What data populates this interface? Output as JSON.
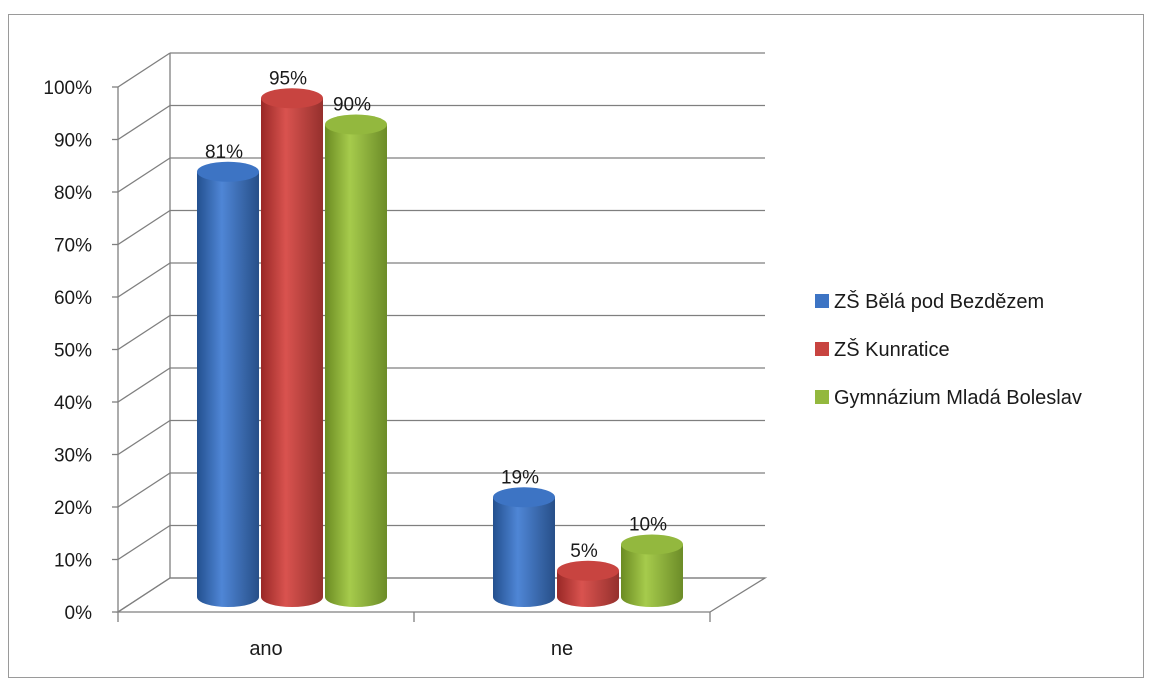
{
  "chart_data": {
    "type": "bar",
    "style": "3d-cylinder",
    "categories": [
      "ano",
      "ne"
    ],
    "series": [
      {
        "name": "ZŠ Bělá pod Bezdězem",
        "values": [
          81,
          19
        ],
        "color": "#3d74c4"
      },
      {
        "name": "ZŠ Kunratice",
        "values": [
          95,
          5
        ],
        "color": "#c84440"
      },
      {
        "name": "Gymnázium Mladá Boleslav",
        "values": [
          90,
          10
        ],
        "color": "#93b83e"
      }
    ],
    "data_labels": [
      [
        "81%",
        "19%"
      ],
      [
        "95%",
        "5%"
      ],
      [
        "90%",
        "10%"
      ]
    ],
    "y_ticks": [
      "0%",
      "10%",
      "20%",
      "30%",
      "40%",
      "50%",
      "60%",
      "70%",
      "80%",
      "90%",
      "100%"
    ],
    "ylim": [
      0,
      100
    ],
    "grid": true,
    "legend_position": "right"
  }
}
